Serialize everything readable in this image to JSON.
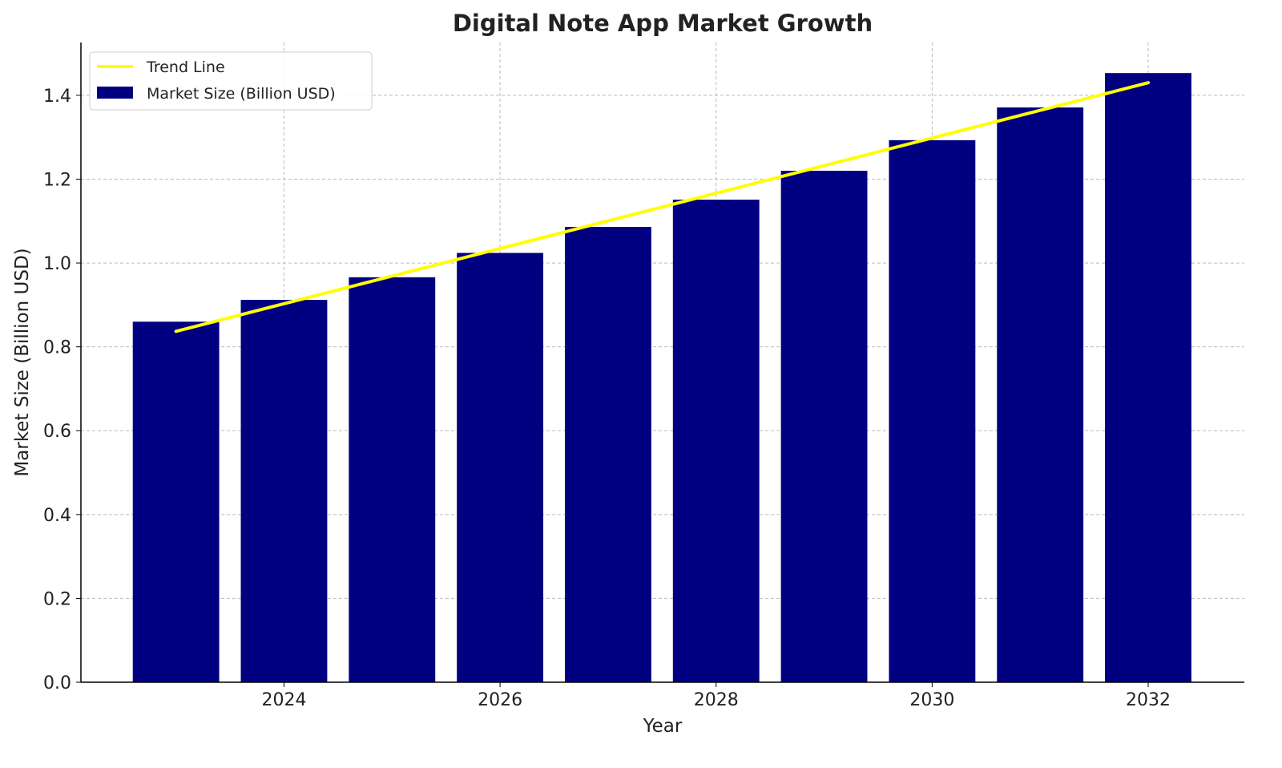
{
  "chart_data": {
    "type": "bar",
    "title": "Digital Note App Market Growth",
    "xlabel": "Year",
    "ylabel": "Market Size (Billion USD)",
    "categories": [
      2023,
      2024,
      2025,
      2026,
      2027,
      2028,
      2029,
      2030,
      2031,
      2032
    ],
    "series": [
      {
        "name": "Market Size (Billion USD)",
        "type": "bar",
        "color": "#000080",
        "values": [
          0.86,
          0.912,
          0.966,
          1.024,
          1.086,
          1.151,
          1.22,
          1.293,
          1.371,
          1.453
        ]
      },
      {
        "name": "Trend Line",
        "type": "line",
        "color": "#ffff00",
        "start": [
          2023,
          0.837
        ],
        "end": [
          2032,
          1.43
        ]
      }
    ],
    "bar_width_years": 0.8,
    "xlim": [
      2022.12,
      2032.89
    ],
    "ylim": [
      0,
      1.526
    ],
    "xticks": [
      2024,
      2026,
      2028,
      2030,
      2032
    ],
    "yticks": [
      "0.0",
      "0.2",
      "0.4",
      "0.6",
      "0.8",
      "1.0",
      "1.2",
      "1.4"
    ],
    "grid": true,
    "legend_position": "top-left"
  }
}
